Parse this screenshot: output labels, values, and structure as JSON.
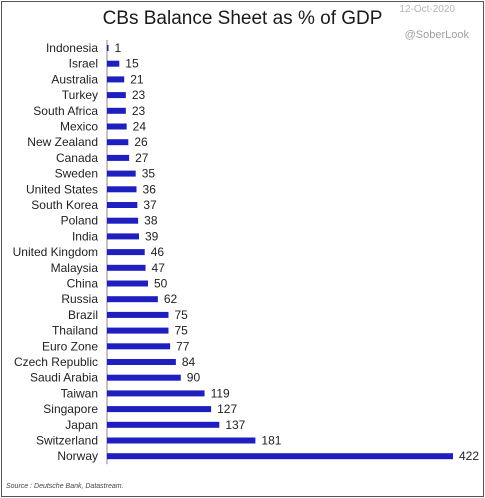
{
  "header": {
    "title": "CBs Balance Sheet as % of GDP",
    "date": "12-Oct-2020",
    "handle": "@SoberLook"
  },
  "footer": {
    "source": "Source : Deutsche Bank, Datastream."
  },
  "colors": {
    "bar": "#1f1fbf",
    "text": "#222222",
    "background": "#ffffff"
  },
  "chart_data": {
    "type": "bar",
    "orientation": "horizontal",
    "title": "CBs Balance Sheet as % of GDP",
    "xlabel": "",
    "ylabel": "",
    "xlim": [
      0,
      422
    ],
    "grid": false,
    "legend": "none",
    "categories": [
      "Indonesia",
      "Israel",
      "Australia",
      "Turkey",
      "South Africa",
      "Mexico",
      "New Zealand",
      "Canada",
      "Sweden",
      "United States",
      "South Korea",
      "Poland",
      "India",
      "United Kingdom",
      "Malaysia",
      "China",
      "Russia",
      "Brazil",
      "Thailand",
      "Euro Zone",
      "Czech Republic",
      "Saudi Arabia",
      "Taiwan",
      "Singapore",
      "Japan",
      "Switzerland",
      "Norway"
    ],
    "values": [
      1,
      15,
      21,
      23,
      23,
      24,
      26,
      27,
      35,
      36,
      37,
      38,
      39,
      46,
      47,
      50,
      62,
      75,
      75,
      77,
      84,
      90,
      119,
      127,
      137,
      181,
      422
    ]
  }
}
